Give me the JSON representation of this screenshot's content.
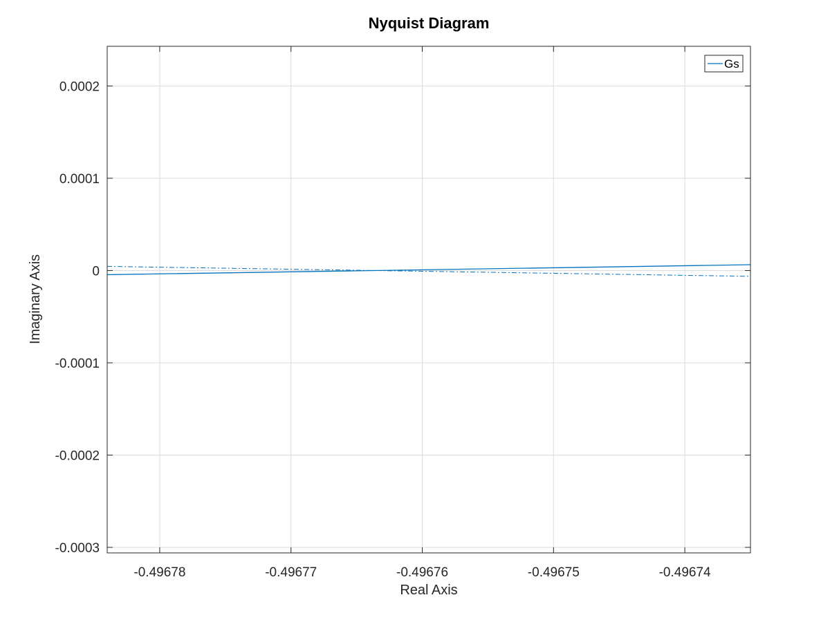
{
  "chart_data": {
    "type": "line",
    "title": "Nyquist Diagram",
    "xlabel": "Real Axis",
    "ylabel": "Imaginary Axis",
    "xlim": [
      -0.496784,
      -0.496735
    ],
    "ylim": [
      -0.000306,
      0.000243
    ],
    "xticks": [
      -0.49678,
      -0.49677,
      -0.49676,
      -0.49675,
      -0.49674
    ],
    "xtick_labels": [
      "-0.49678",
      "-0.49677",
      "-0.49676",
      "-0.49675",
      "-0.49674"
    ],
    "yticks": [
      0.0002,
      0.0001,
      0,
      -0.0001,
      -0.0002,
      -0.0003
    ],
    "ytick_labels": [
      "0.0002",
      "0.0001",
      "0",
      "-0.0001",
      "-0.0002",
      "-0.0003"
    ],
    "grid": true,
    "legend": {
      "placement": "top-right",
      "entries": [
        "Gs"
      ]
    },
    "color": "#0072BD",
    "series": [
      {
        "name": "Gs",
        "style": "solid",
        "x": [
          -0.496784,
          -0.496735
        ],
        "y": [
          -4.5e-06,
          6.3e-06
        ]
      },
      {
        "name": "",
        "style": "dashdot",
        "x": [
          -0.496784,
          -0.496735
        ],
        "y": [
          4.5e-06,
          -6.3e-06
        ]
      }
    ]
  }
}
